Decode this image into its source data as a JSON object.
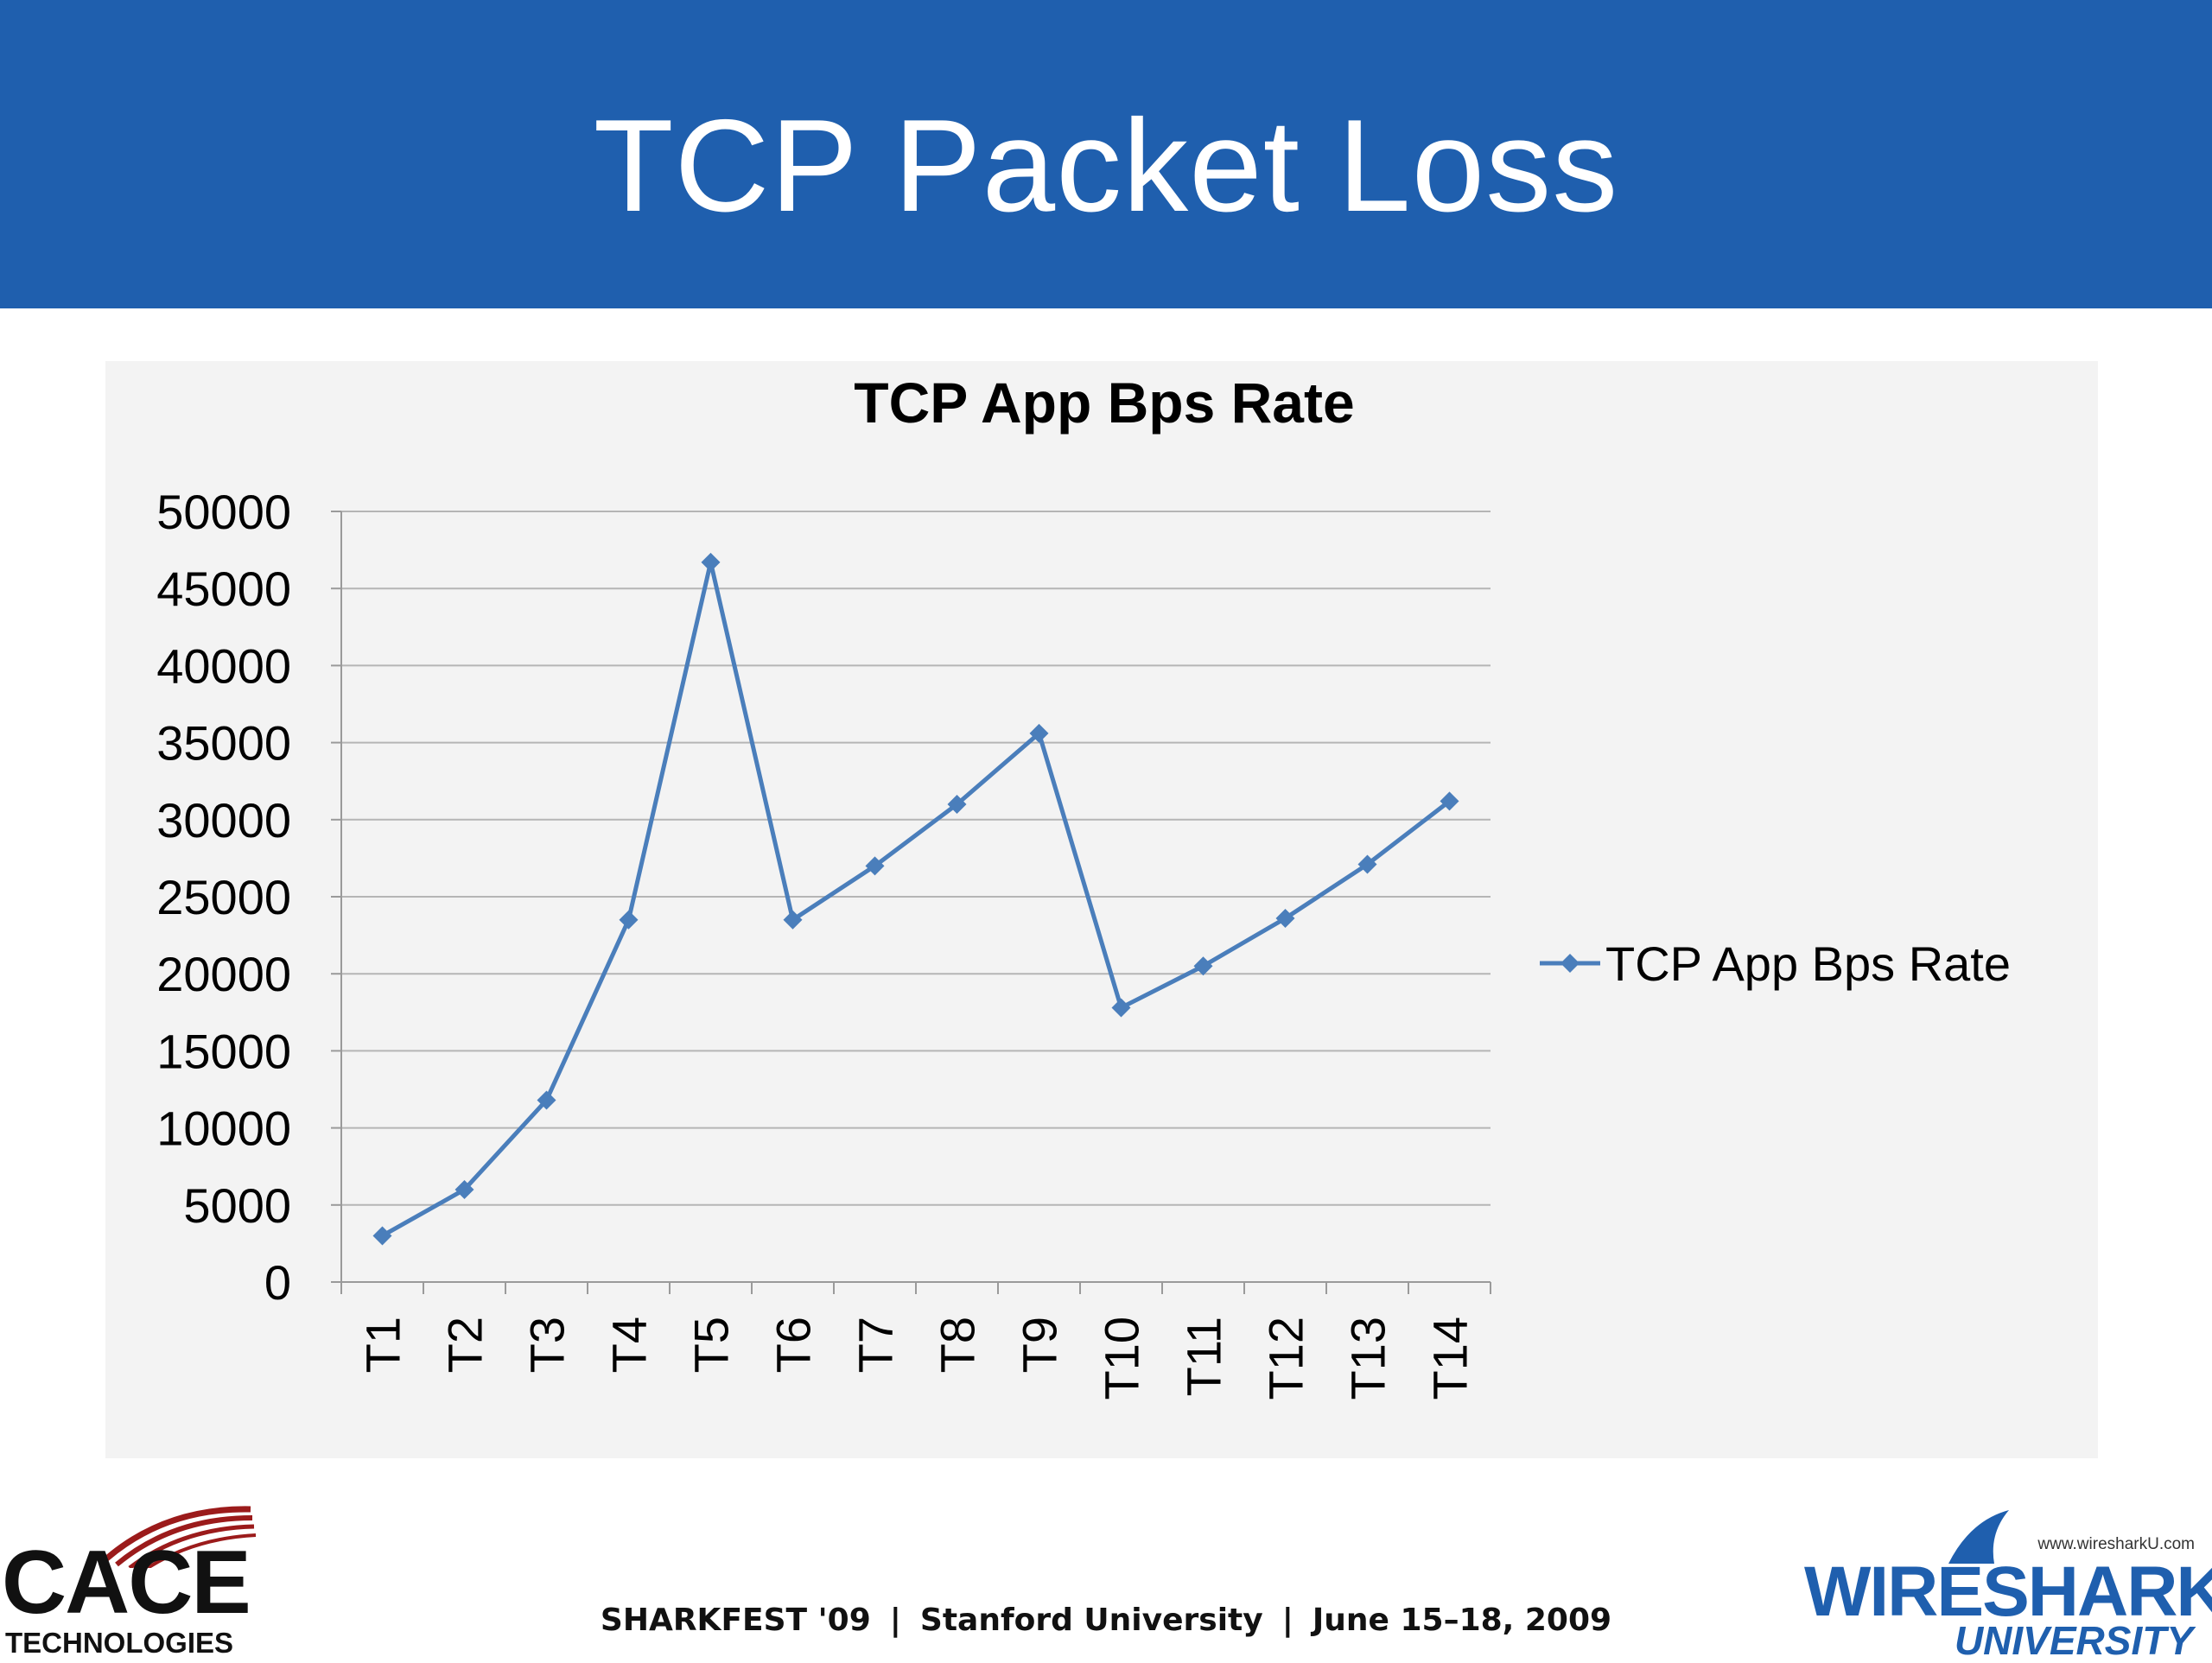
{
  "slide": {
    "title": "TCP Packet Loss",
    "footer": {
      "event": "SHARKFEST '09",
      "venue": "Stanford University",
      "dates": "June 15–18, 2009"
    }
  },
  "logos": {
    "left": {
      "word": "CACE",
      "sub": "TECHNOLOGIES"
    },
    "right": {
      "url": "www.wiresharkU.com",
      "word": "WIRESHARK",
      "sub": "UNIVERSITY"
    }
  },
  "colors": {
    "header": "#1f5fae",
    "series": "#4a7ebb",
    "panel": "#f3f3f3",
    "grid": "#b5b5b5"
  },
  "chart_data": {
    "type": "line",
    "title": "TCP App Bps Rate",
    "xlabel": "",
    "ylabel": "",
    "categories": [
      "T1",
      "T2",
      "T3",
      "T4",
      "T5",
      "T6",
      "T7",
      "T8",
      "T9",
      "T10",
      "T11",
      "T12",
      "T13",
      "T14"
    ],
    "series": [
      {
        "name": "TCP App Bps Rate",
        "values": [
          3000,
          6000,
          11800,
          23500,
          46700,
          23500,
          27000,
          31000,
          35600,
          17800,
          20500,
          23600,
          27100,
          31200
        ]
      }
    ],
    "ylim": [
      0,
      50000
    ],
    "yticks": [
      0,
      5000,
      10000,
      15000,
      20000,
      25000,
      30000,
      35000,
      40000,
      45000,
      50000
    ],
    "grid": true,
    "legend": "right",
    "marker": "diamond"
  }
}
